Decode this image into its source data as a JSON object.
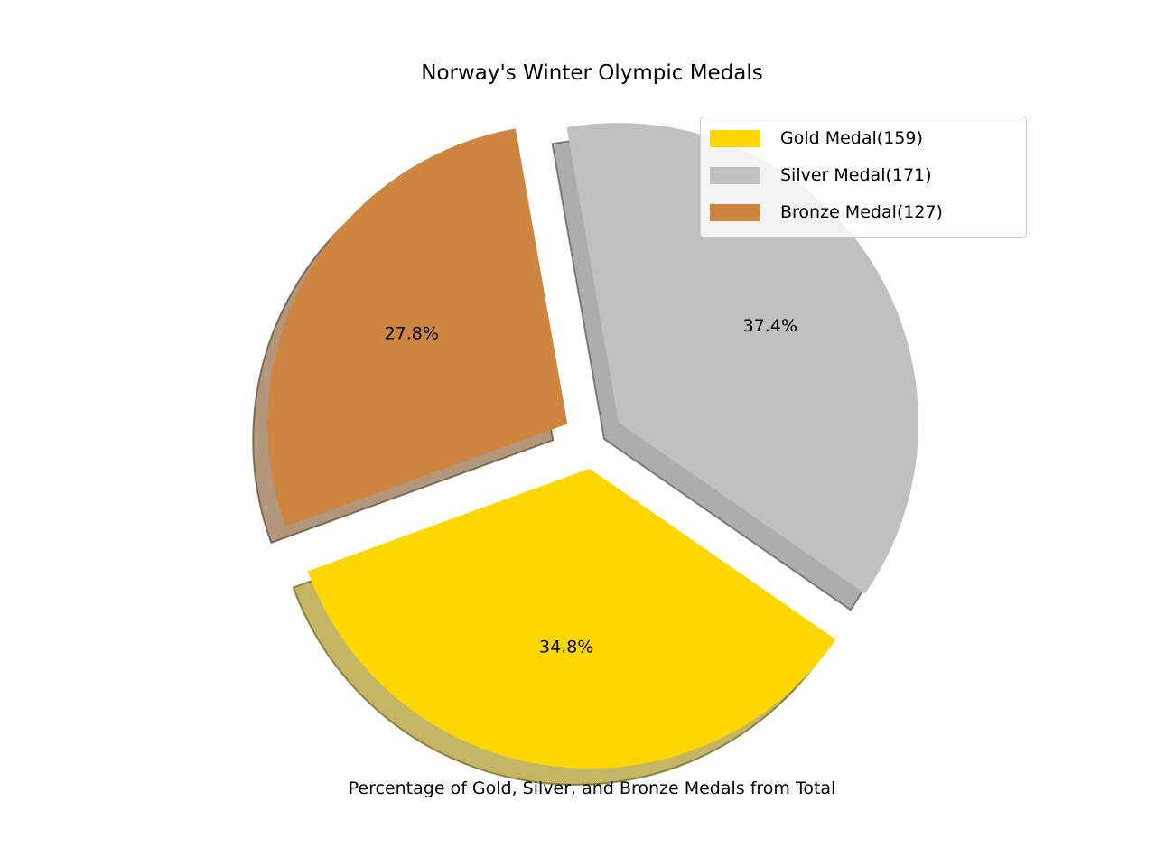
{
  "chart_data": {
    "type": "pie",
    "title": "Norway's Winter Olympic Medals",
    "xlabel": "Percentage of Gold, Silver, and Bronze Medals from Total",
    "startangle_deg": 200,
    "explode": [
      0.1,
      0.1,
      0.1
    ],
    "shadow": true,
    "slices": [
      {
        "label": "Gold Medal(159)",
        "value": 159,
        "pct_label": "34.8%",
        "color": "#FFD700"
      },
      {
        "label": "Silver Medal(171)",
        "value": 171,
        "pct_label": "37.4%",
        "color": "#C0C0C0"
      },
      {
        "label": "Bronze Medal(127)",
        "value": 127,
        "pct_label": "27.8%",
        "color": "#CD853F"
      }
    ],
    "legend_position": "top-right"
  }
}
